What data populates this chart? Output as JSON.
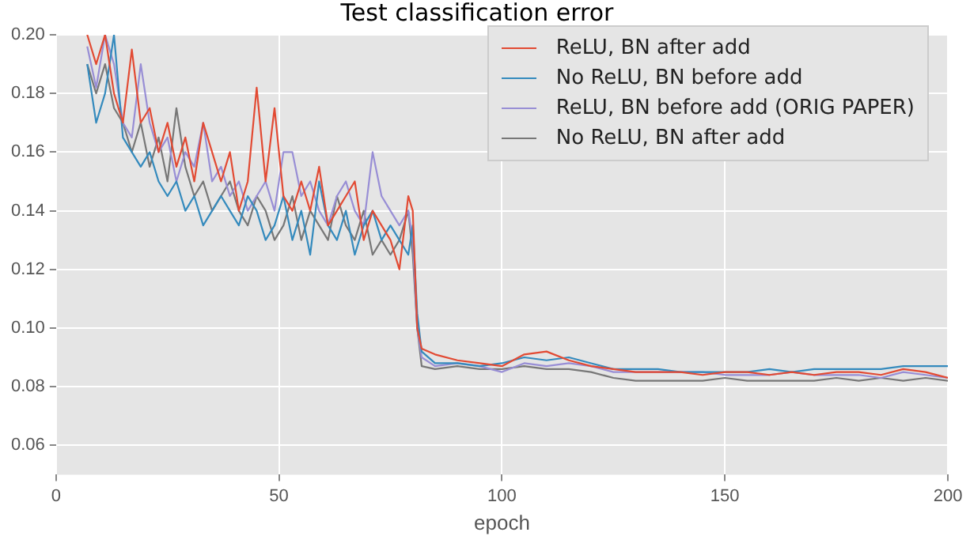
{
  "chart_data": {
    "type": "line",
    "title": "Test classification error",
    "xlabel": "epoch",
    "x": [
      7,
      9,
      11,
      13,
      15,
      17,
      19,
      21,
      23,
      25,
      27,
      29,
      31,
      33,
      35,
      37,
      39,
      41,
      43,
      45,
      47,
      49,
      51,
      53,
      55,
      57,
      59,
      61,
      63,
      65,
      67,
      69,
      71,
      73,
      75,
      77,
      79,
      80,
      81,
      82,
      85,
      90,
      95,
      100,
      105,
      110,
      115,
      120,
      125,
      130,
      135,
      140,
      145,
      150,
      155,
      160,
      165,
      170,
      175,
      180,
      185,
      190,
      195,
      200
    ],
    "series": [
      {
        "name": "ReLU, BN after add",
        "color": "#e24a33",
        "values": [
          0.2,
          0.19,
          0.2,
          0.18,
          0.17,
          0.195,
          0.17,
          0.175,
          0.16,
          0.17,
          0.155,
          0.165,
          0.15,
          0.17,
          0.16,
          0.15,
          0.16,
          0.14,
          0.15,
          0.182,
          0.15,
          0.175,
          0.145,
          0.14,
          0.15,
          0.14,
          0.155,
          0.135,
          0.14,
          0.145,
          0.15,
          0.13,
          0.14,
          0.135,
          0.13,
          0.12,
          0.145,
          0.14,
          0.1,
          0.093,
          0.091,
          0.089,
          0.088,
          0.087,
          0.091,
          0.092,
          0.089,
          0.087,
          0.086,
          0.085,
          0.085,
          0.085,
          0.084,
          0.085,
          0.085,
          0.084,
          0.085,
          0.084,
          0.085,
          0.085,
          0.084,
          0.086,
          0.085,
          0.083
        ]
      },
      {
        "name": "No ReLU, BN before add",
        "color": "#348abd",
        "values": [
          0.19,
          0.17,
          0.18,
          0.2,
          0.165,
          0.16,
          0.155,
          0.16,
          0.15,
          0.145,
          0.15,
          0.14,
          0.145,
          0.135,
          0.14,
          0.145,
          0.14,
          0.135,
          0.145,
          0.14,
          0.13,
          0.135,
          0.145,
          0.13,
          0.14,
          0.125,
          0.15,
          0.135,
          0.13,
          0.14,
          0.125,
          0.135,
          0.14,
          0.13,
          0.135,
          0.13,
          0.125,
          0.135,
          0.105,
          0.092,
          0.088,
          0.088,
          0.087,
          0.088,
          0.09,
          0.089,
          0.09,
          0.088,
          0.086,
          0.086,
          0.086,
          0.085,
          0.085,
          0.085,
          0.085,
          0.086,
          0.085,
          0.086,
          0.086,
          0.086,
          0.086,
          0.087,
          0.087,
          0.087
        ]
      },
      {
        "name": "ReLU, BN before add (ORIG PAPER)",
        "color": "#988ed5",
        "values": [
          0.196,
          0.182,
          0.2,
          0.19,
          0.17,
          0.165,
          0.19,
          0.17,
          0.16,
          0.165,
          0.15,
          0.16,
          0.155,
          0.17,
          0.15,
          0.155,
          0.145,
          0.15,
          0.14,
          0.145,
          0.15,
          0.14,
          0.16,
          0.16,
          0.145,
          0.15,
          0.14,
          0.135,
          0.145,
          0.15,
          0.14,
          0.135,
          0.16,
          0.145,
          0.14,
          0.135,
          0.14,
          0.13,
          0.1,
          0.09,
          0.087,
          0.088,
          0.087,
          0.085,
          0.088,
          0.087,
          0.088,
          0.087,
          0.085,
          0.085,
          0.085,
          0.085,
          0.085,
          0.084,
          0.084,
          0.084,
          0.085,
          0.084,
          0.084,
          0.084,
          0.083,
          0.085,
          0.084,
          0.083
        ]
      },
      {
        "name": "No ReLU, BN after add",
        "color": "#777777",
        "values": [
          0.19,
          0.18,
          0.19,
          0.175,
          0.17,
          0.16,
          0.17,
          0.155,
          0.165,
          0.15,
          0.175,
          0.155,
          0.145,
          0.15,
          0.14,
          0.145,
          0.15,
          0.14,
          0.135,
          0.145,
          0.14,
          0.13,
          0.135,
          0.145,
          0.13,
          0.14,
          0.135,
          0.13,
          0.145,
          0.135,
          0.13,
          0.14,
          0.125,
          0.13,
          0.125,
          0.13,
          0.14,
          0.125,
          0.1,
          0.087,
          0.086,
          0.087,
          0.086,
          0.086,
          0.087,
          0.086,
          0.086,
          0.085,
          0.083,
          0.082,
          0.082,
          0.082,
          0.082,
          0.083,
          0.082,
          0.082,
          0.082,
          0.082,
          0.083,
          0.082,
          0.083,
          0.082,
          0.083,
          0.082
        ]
      }
    ],
    "xlim": [
      0,
      200
    ],
    "xticks": [
      0,
      50,
      100,
      150,
      200
    ],
    "ylim": [
      0.05,
      0.2
    ],
    "yticks": [
      0.06,
      0.08,
      {
        "value": 0.1,
        "label": "0.10"
      },
      0.12,
      0.14,
      0.16,
      0.18,
      {
        "value": 0.2,
        "label": "0.20"
      }
    ],
    "grid": true,
    "legend": "top right",
    "marker": "none",
    "line_style": "solid"
  }
}
